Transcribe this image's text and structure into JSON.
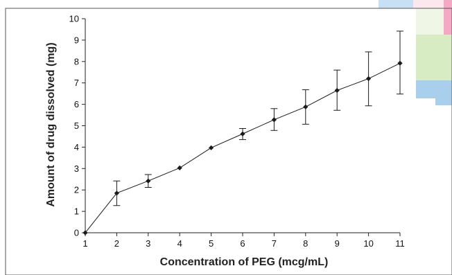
{
  "chart_data": {
    "type": "line",
    "title": "",
    "xlabel": "Concentration of PEG (mcg/mL)",
    "ylabel": "Amount of drug dissolved (mg)",
    "x": [
      1,
      2,
      3,
      4,
      5,
      6,
      7,
      8,
      9,
      10,
      11
    ],
    "xlim": [
      1,
      11
    ],
    "ylim": [
      0,
      10
    ],
    "xticks": [
      1,
      2,
      3,
      4,
      5,
      6,
      7,
      8,
      9,
      10,
      11
    ],
    "yticks": [
      0,
      1,
      2,
      3,
      4,
      5,
      6,
      7,
      8,
      9,
      10
    ],
    "grid": false,
    "legend": "none",
    "series": [
      {
        "values": [
          0,
          1.85,
          2.42,
          3.03,
          3.97,
          4.62,
          5.28,
          5.88,
          6.65,
          7.2,
          7.92
        ],
        "error_low": [
          0,
          1.27,
          2.12,
          3.03,
          3.97,
          4.35,
          4.78,
          5.07,
          5.72,
          5.93,
          6.48
        ],
        "error_high": [
          0,
          2.42,
          2.72,
          3.03,
          3.97,
          4.87,
          5.8,
          6.68,
          7.6,
          8.45,
          9.42
        ],
        "color": "#1a1a1a",
        "marker": "diamond"
      }
    ]
  },
  "decor_colors": [
    "#c8e0f4",
    "#fbe8ef",
    "#f0f6e6",
    "#d8ecc4",
    "#f4a8c4",
    "#a8d0ec"
  ]
}
